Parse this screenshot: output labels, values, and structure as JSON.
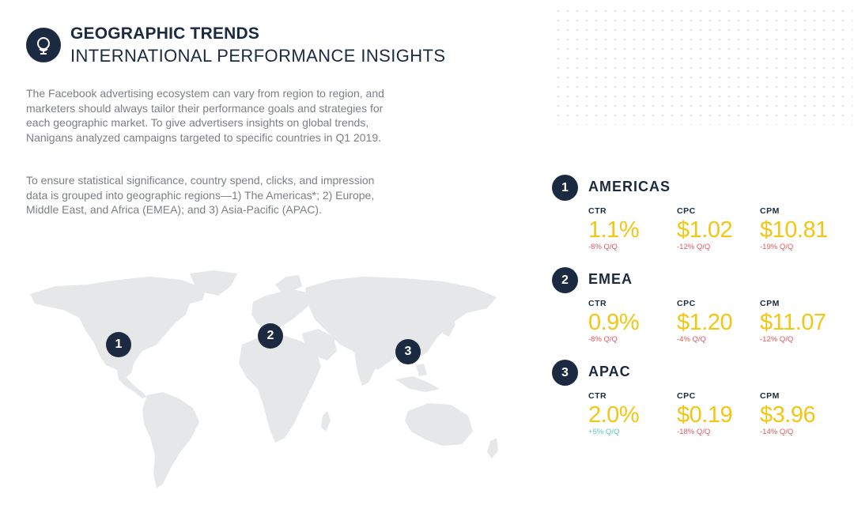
{
  "header": {
    "title": "GEOGRAPHIC TRENDS",
    "subtitle": "INTERNATIONAL PERFORMANCE INSIGHTS",
    "logo_icon": "globe-pin-icon"
  },
  "intro": {
    "paragraph1": "The Facebook advertising ecosystem can vary from region to region, and marketers should always tailor their performance goals and strategies for each geographic market. To give advertisers insights on global trends, Nanigans analyzed campaigns targeted to specific countries in Q1 2019.",
    "paragraph2": "To ensure statistical significance, country spend, clicks, and impression data is grouped into geographic regions—1) The Americas*; 2) Europe, Middle East, and Africa (EMEA); and 3) Asia-Pacific (APAC)."
  },
  "map": {
    "pins": [
      "1",
      "2",
      "3"
    ]
  },
  "regions": [
    {
      "number": "1",
      "name": "AMERICAS",
      "metrics": [
        {
          "label": "CTR",
          "value": "1.1%",
          "change": "-8% Q/Q"
        },
        {
          "label": "CPC",
          "value": "$1.02",
          "change": "-12% Q/Q"
        },
        {
          "label": "CPM",
          "value": "$10.81",
          "change": "-19% Q/Q"
        }
      ]
    },
    {
      "number": "2",
      "name": "EMEA",
      "metrics": [
        {
          "label": "CTR",
          "value": "0.9%",
          "change": "-8% Q/Q"
        },
        {
          "label": "CPC",
          "value": "$1.20",
          "change": "-4% Q/Q"
        },
        {
          "label": "CPM",
          "value": "$11.07",
          "change": "-12% Q/Q"
        }
      ]
    },
    {
      "number": "3",
      "name": "APAC",
      "metrics": [
        {
          "label": "CTR",
          "value": "2.0%",
          "change": "+5% Q/Q"
        },
        {
          "label": "CPC",
          "value": "$0.19",
          "change": "-18% Q/Q"
        },
        {
          "label": "CPM",
          "value": "$3.96",
          "change": "-14% Q/Q"
        }
      ]
    }
  ],
  "colors": {
    "navy": "#1b2a40",
    "value_yellow": "#f3c614",
    "negative_red": "#e05a60",
    "positive_teal": "#5bc8bd",
    "map_gray": "#e6e7e9"
  }
}
